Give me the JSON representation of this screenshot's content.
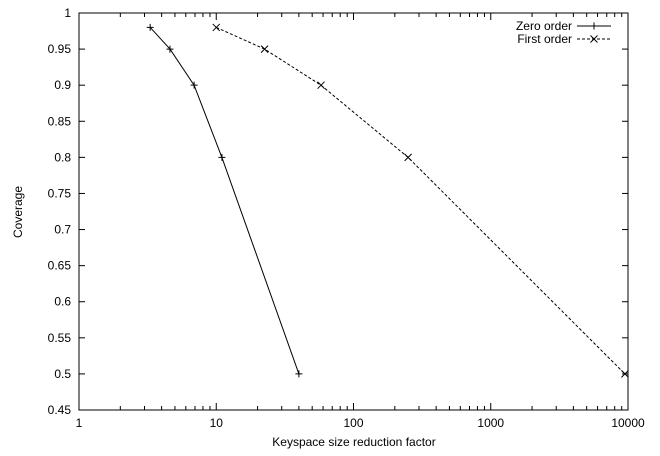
{
  "chart_data": {
    "type": "line",
    "title": "",
    "xlabel": "Keyspace size reduction factor",
    "ylabel": "Coverage",
    "xscale": "log",
    "xlim": [
      1,
      10000
    ],
    "ylim": [
      0.45,
      1.0
    ],
    "xticks": [
      1,
      10,
      100,
      1000,
      10000
    ],
    "xtick_labels": [
      "1",
      "10",
      "100",
      "1000",
      "10000"
    ],
    "yticks": [
      0.45,
      0.5,
      0.55,
      0.6,
      0.65,
      0.7,
      0.75,
      0.8,
      0.85,
      0.9,
      0.95,
      1.0
    ],
    "ytick_labels": [
      "0.45",
      "0.5",
      "0.55",
      "0.6",
      "0.65",
      "0.7",
      "0.75",
      "0.8",
      "0.85",
      "0.9",
      "0.95",
      "1"
    ],
    "grid": false,
    "legend_position": "top-right",
    "series": [
      {
        "name": "Zero order",
        "line_style": "solid",
        "marker": "plus",
        "color": "#000000",
        "x": [
          3.3,
          4.6,
          6.9,
          11,
          40
        ],
        "y": [
          0.98,
          0.95,
          0.9,
          0.8,
          0.5
        ]
      },
      {
        "name": "First order",
        "line_style": "dashed",
        "marker": "cross",
        "color": "#000000",
        "x": [
          10,
          22.5,
          58,
          250,
          9500
        ],
        "y": [
          0.98,
          0.95,
          0.9,
          0.8,
          0.5
        ]
      }
    ]
  }
}
